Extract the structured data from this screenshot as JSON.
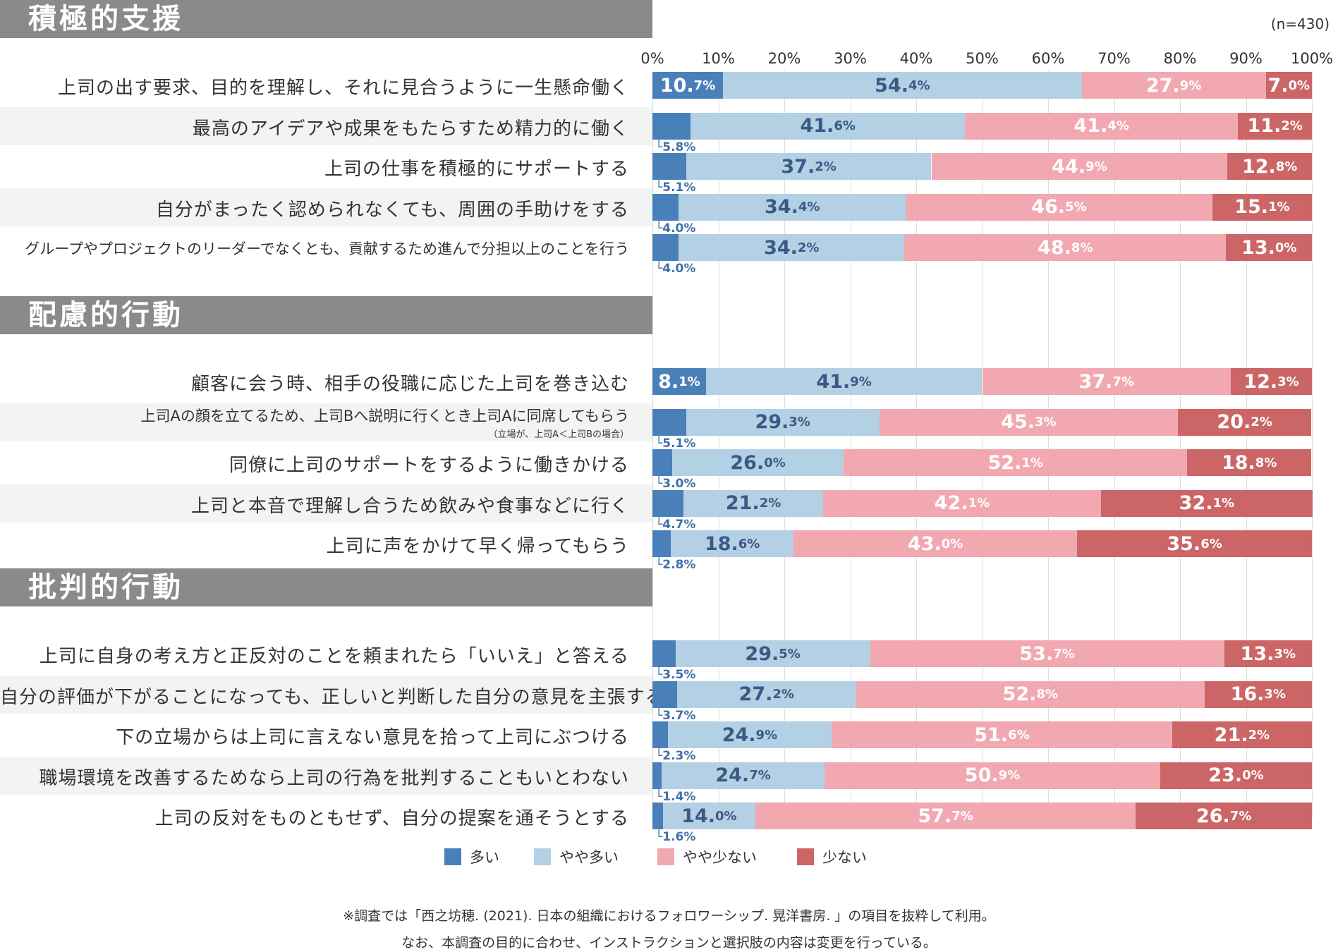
{
  "n_label": "(n=430)",
  "colors": {
    "many": "#4a80ba",
    "somewhat_many": "#b3d0e4",
    "somewhat_few": "#f2a8b0",
    "few": "#cc6566"
  },
  "footnote": {
    "line1": "※調査では「西之坊穂. (2021). 日本の組織におけるフォロワーシップ. 晃洋書房. 」の項目を抜粋して利用。",
    "line2": "なお、本調査の目的に合わせ、インストラクションと選択肢の内容は変更を行っている。"
  },
  "chart_data": {
    "type": "bar",
    "orientation": "horizontal",
    "stacked": true,
    "xlim": [
      0,
      100
    ],
    "ticks": [
      "0%",
      "10%",
      "20%",
      "30%",
      "40%",
      "50%",
      "60%",
      "70%",
      "80%",
      "90%",
      "100%"
    ],
    "legend": [
      "多い",
      "やや多い",
      "やや少ない",
      "少ない"
    ],
    "legend_position": "bottom",
    "sections": [
      {
        "title": "積極的支援",
        "rows": [
          {
            "label": "上司の出す要求、目的を理解し、それに見合うように一生懸命働く",
            "values": [
              10.7,
              54.4,
              27.9,
              7.0
            ],
            "small": false
          },
          {
            "label": "最高のアイデアや成果をもたらすため精力的に働く",
            "values": [
              5.8,
              41.6,
              41.4,
              11.2
            ],
            "small": false
          },
          {
            "label": "上司の仕事を積極的にサポートする",
            "values": [
              5.1,
              37.2,
              44.9,
              12.8
            ],
            "small": false
          },
          {
            "label": "自分がまったく認められなくても、周囲の手助けをする",
            "values": [
              4.0,
              34.4,
              46.5,
              15.1
            ],
            "small": false
          },
          {
            "label": "グループやプロジェクトのリーダーでなくとも、貢献するため進んで分担以上のことを行う",
            "values": [
              4.0,
              34.2,
              48.8,
              13.0
            ],
            "small": true
          }
        ]
      },
      {
        "title": "配慮的行動",
        "rows": [
          {
            "label": "顧客に会う時、相手の役職に応じた上司を巻き込む",
            "values": [
              8.1,
              41.9,
              37.7,
              12.3
            ],
            "small": false
          },
          {
            "label": "上司Aの顔を立てるため、上司Bへ説明に行くとき上司Aに同席してもらう",
            "sub": "（立場が、上司A＜上司Bの場合）",
            "values": [
              5.1,
              29.3,
              45.3,
              20.2
            ],
            "small": true
          },
          {
            "label": "同僚に上司のサポートをするように働きかける",
            "values": [
              3.0,
              26.0,
              52.1,
              18.8
            ],
            "small": false
          },
          {
            "label": "上司と本音で理解し合うため飲みや食事などに行く",
            "values": [
              4.7,
              21.2,
              42.1,
              32.1
            ],
            "small": false
          },
          {
            "label": "上司に声をかけて早く帰ってもらう",
            "values": [
              2.8,
              18.6,
              43.0,
              35.6
            ],
            "small": false
          }
        ]
      },
      {
        "title": "批判的行動",
        "rows": [
          {
            "label": "上司に自身の考え方と正反対のことを頼まれたら「いいえ」と答える",
            "values": [
              3.5,
              29.5,
              53.7,
              13.3
            ],
            "small": false
          },
          {
            "label": "自分の評価が下がることになっても、正しいと判断した自分の意見を主張する",
            "values": [
              3.7,
              27.2,
              52.8,
              16.3
            ],
            "small": false
          },
          {
            "label": "下の立場からは上司に言えない意見を拾って上司にぶつける",
            "values": [
              2.3,
              24.9,
              51.6,
              21.2
            ],
            "small": false
          },
          {
            "label": "職場環境を改善するためなら上司の行為を批判することもいとわない",
            "values": [
              1.4,
              24.7,
              50.9,
              23.0
            ],
            "small": false
          },
          {
            "label": "上司の反対をものともせず、自分の提案を通そうとする",
            "values": [
              1.6,
              14.0,
              57.7,
              26.7
            ],
            "small": false
          }
        ]
      }
    ]
  }
}
